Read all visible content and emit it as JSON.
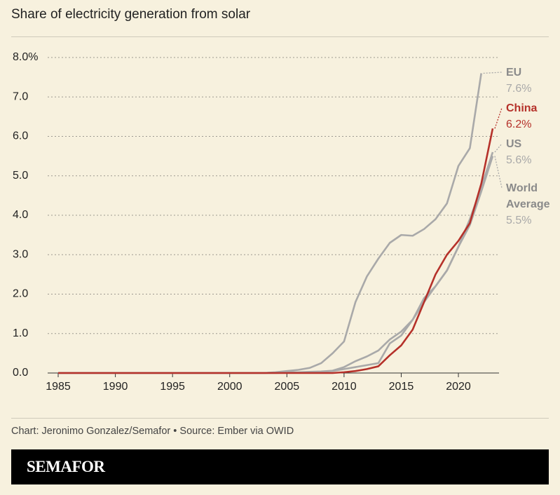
{
  "chart_data": {
    "type": "line",
    "title": "Share of electricity generation from solar",
    "source": "Chart: Jeronimo Gonzalez/Semafor • Source: Ember via OWID",
    "logo": "SEMAFOR",
    "x": [
      1985,
      1986,
      1987,
      1988,
      1989,
      1990,
      1991,
      1992,
      1993,
      1994,
      1995,
      1996,
      1997,
      1998,
      1999,
      2000,
      2001,
      2002,
      2003,
      2004,
      2005,
      2006,
      2007,
      2008,
      2009,
      2010,
      2011,
      2012,
      2013,
      2014,
      2015,
      2016,
      2017,
      2018,
      2019,
      2020,
      2021,
      2022,
      2023
    ],
    "series": [
      {
        "name": "EU",
        "color": "#a9a9a9",
        "values": [
          0,
          0,
          0,
          0,
          0,
          0,
          0,
          0,
          0,
          0,
          0,
          0,
          0,
          0,
          0,
          0,
          0,
          0,
          0,
          0.02,
          0.05,
          0.08,
          0.13,
          0.25,
          0.5,
          0.8,
          1.8,
          2.45,
          2.9,
          3.3,
          3.5,
          3.48,
          3.65,
          3.9,
          4.3,
          5.25,
          5.7,
          7.6,
          null
        ],
        "value_labels": [
          null,
          null,
          null,
          null,
          null,
          null,
          null,
          null,
          null,
          null,
          null,
          null,
          null,
          null,
          null,
          null,
          null,
          null,
          null,
          null,
          null,
          null,
          null,
          null,
          null,
          null,
          null,
          null,
          null,
          null,
          null,
          null,
          null,
          null,
          null,
          null,
          null,
          "7.6%",
          null
        ]
      },
      {
        "name": "China",
        "color": "#b5312a",
        "values": [
          0,
          0,
          0,
          0,
          0,
          0,
          0,
          0,
          0,
          0,
          0,
          0,
          0,
          0,
          0,
          0,
          0,
          0,
          0,
          0,
          0,
          0,
          0,
          0,
          0,
          0.02,
          0.05,
          0.1,
          0.17,
          0.45,
          0.7,
          1.1,
          1.8,
          2.5,
          3.0,
          3.35,
          3.8,
          4.8,
          6.2
        ],
        "value_labels": [
          null,
          null,
          null,
          null,
          null,
          null,
          null,
          null,
          null,
          null,
          null,
          null,
          null,
          null,
          null,
          null,
          null,
          null,
          null,
          null,
          null,
          null,
          null,
          null,
          null,
          null,
          null,
          null,
          null,
          null,
          null,
          null,
          null,
          null,
          null,
          null,
          null,
          null,
          "6.2%"
        ]
      },
      {
        "name": "US",
        "color": "#a9a9a9",
        "values": [
          0,
          0,
          0,
          0,
          0,
          0,
          0,
          0,
          0,
          0,
          0,
          0,
          0,
          0,
          0,
          0,
          0,
          0,
          0,
          0,
          0.01,
          0.01,
          0.02,
          0.03,
          0.05,
          0.1,
          0.15,
          0.2,
          0.25,
          0.75,
          0.95,
          1.35,
          1.9,
          2.2,
          2.6,
          3.2,
          3.9,
          4.7,
          5.6
        ],
        "value_labels": [
          null,
          null,
          null,
          null,
          null,
          null,
          null,
          null,
          null,
          null,
          null,
          null,
          null,
          null,
          null,
          null,
          null,
          null,
          null,
          null,
          null,
          null,
          null,
          null,
          null,
          null,
          null,
          null,
          null,
          null,
          null,
          null,
          null,
          null,
          null,
          null,
          null,
          null,
          "5.6%"
        ]
      },
      {
        "name": "World Average",
        "color": "#a9a9a9",
        "values": [
          0,
          0,
          0,
          0,
          0,
          0,
          0,
          0,
          0,
          0,
          0,
          0,
          0,
          0,
          0,
          0,
          0,
          0,
          0,
          0.01,
          0.02,
          0.02,
          0.03,
          0.04,
          0.06,
          0.15,
          0.3,
          0.42,
          0.57,
          0.85,
          1.05,
          1.35,
          1.8,
          2.2,
          2.6,
          3.2,
          3.75,
          4.6,
          5.5
        ],
        "value_labels": [
          null,
          null,
          null,
          null,
          null,
          null,
          null,
          null,
          null,
          null,
          null,
          null,
          null,
          null,
          null,
          null,
          null,
          null,
          null,
          null,
          null,
          null,
          null,
          null,
          null,
          null,
          null,
          null,
          null,
          null,
          null,
          null,
          null,
          null,
          null,
          null,
          null,
          null,
          "5.5%"
        ]
      }
    ],
    "xlim": [
      1984,
      2024
    ],
    "xticks": [
      1985,
      1990,
      1995,
      2000,
      2005,
      2010,
      2015,
      2020
    ],
    "ylim": [
      0,
      8
    ],
    "yticks": [
      {
        "value": 0,
        "label": "0.0"
      },
      {
        "value": 1,
        "label": "1.0"
      },
      {
        "value": 2,
        "label": "2.0"
      },
      {
        "value": 3,
        "label": "3.0"
      },
      {
        "value": 4,
        "label": "4.0"
      },
      {
        "value": 5,
        "label": "5.0"
      },
      {
        "value": 6,
        "label": "6.0"
      },
      {
        "value": 7,
        "label": "7.0"
      },
      {
        "value": 8,
        "label": "8.0%"
      }
    ],
    "grid": true
  }
}
